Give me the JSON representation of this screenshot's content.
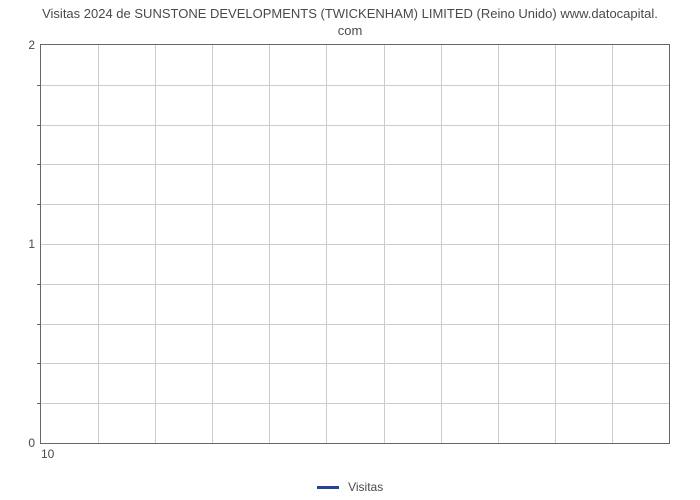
{
  "chart": {
    "type": "line",
    "title_line1": "Visitas 2024 de SUNSTONE DEVELOPMENTS (TWICKENHAM) LIMITED (Reino Unido) www.datocapital.",
    "title_line2": "com",
    "title_fontsize": 13,
    "title_color": "#4a4a4a",
    "background_color": "#ffffff",
    "plot_border_color": "#666666",
    "grid_color": "#cccccc",
    "tick_color": "#4a4a4a",
    "tick_fontsize": 12,
    "ylim": [
      0,
      2
    ],
    "ytick_major": [
      0,
      1,
      2
    ],
    "ytick_minor_count_between": 4,
    "x_major_ticks": [
      10
    ],
    "grid_v_count": 11,
    "grid_h_major": [
      0,
      1,
      2
    ],
    "grid_h_minor_per_interval": 4,
    "series": [
      {
        "name": "Visitas",
        "color": "#274194",
        "values": []
      }
    ],
    "legend": {
      "position": "bottom-center",
      "items": [
        {
          "label": "Visitas",
          "color": "#274194"
        }
      ]
    }
  }
}
